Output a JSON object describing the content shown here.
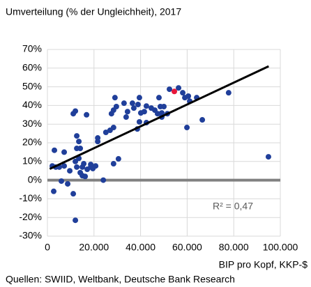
{
  "chart_data": {
    "type": "scatter",
    "title": "Umverteilung (% der Ungleichheit), 2017",
    "x_label": "BIP pro Kopf, KKP-$",
    "source": "Quellen: SWIID, Weltbank, Deutsche Bank Research",
    "annotation": "R² = 0,47",
    "xlim": [
      0,
      100000
    ],
    "xticks": [
      0,
      {
        "value": 20000,
        "label": "20.000"
      },
      {
        "value": 40000,
        "label": "40.000"
      },
      {
        "value": 60000,
        "label": "60.000"
      },
      {
        "value": 80000,
        "label": "80.000"
      },
      {
        "value": 100000,
        "label": "100.000"
      }
    ],
    "ylim": [
      -30,
      70
    ],
    "yticks": [
      {
        "value": -30,
        "label": "-30%"
      },
      {
        "value": -20,
        "label": "-20%"
      },
      {
        "value": -10,
        "label": "-10%"
      },
      {
        "value": 0,
        "label": "0%"
      },
      {
        "value": 10,
        "label": "10%"
      },
      {
        "value": 20,
        "label": "20%"
      },
      {
        "value": 30,
        "label": "30%"
      },
      {
        "value": 40,
        "label": "40%"
      },
      {
        "value": 50,
        "label": "50%"
      },
      {
        "value": 60,
        "label": "60%"
      },
      {
        "value": 70,
        "label": "70%"
      }
    ],
    "grid": true,
    "trendline": {
      "color": "#000000",
      "x": [
        1000,
        95000
      ],
      "y": [
        6,
        61
      ]
    },
    "series": [
      {
        "color": "#203f9a",
        "x": [
          2100,
          3000,
          2700,
          3600,
          5100,
          6000,
          7200,
          7200,
          8700,
          9600,
          11100,
          12000,
          11100,
          12600,
          13500,
          12600,
          14100,
          13500,
          12000,
          12600,
          15000,
          14100,
          15600,
          16800,
          17100,
          18600,
          18600,
          19500,
          20700,
          21600,
          21600,
          24000,
          12000,
          15000,
          16200,
          25100,
          26900,
          28400,
          29000,
          28400,
          29600,
          27500,
          30500,
          28400,
          32900,
          34400,
          33800,
          36500,
          37100,
          38900,
          39500,
          39500,
          38600,
          40100,
          41600,
          42500,
          42500,
          44600,
          46100,
          47300,
          48500,
          50000,
          49100,
          49100,
          47900,
          51500,
          52400,
          56300,
          58100,
          59000,
          60500,
          61100,
          59900,
          64100,
          66500,
          77800,
          94900
        ],
        "values": [
          7.6,
          16,
          -6,
          7,
          7,
          -0.5,
          15,
          7.6,
          -2,
          5,
          -7.3,
          37,
          35.6,
          23.7,
          20.7,
          17,
          17,
          11.7,
          10,
          7,
          7,
          4,
          8.8,
          35,
          5.8,
          7,
          8.4,
          6.2,
          7.6,
          20.7,
          22.6,
          0,
          -21.5,
          2.4,
          2,
          25.6,
          26.7,
          28.2,
          44.2,
          37.5,
          39.4,
          35.6,
          11.4,
          8.8,
          41.2,
          36.7,
          33.8,
          41.2,
          38.6,
          40.5,
          44.2,
          31.2,
          27.4,
          36,
          36.7,
          39.7,
          30.8,
          38.6,
          37.5,
          35.6,
          39.4,
          39.4,
          36,
          33.8,
          44.2,
          35.6,
          48.7,
          49.4,
          46.8,
          44.2,
          45,
          42.3,
          28.2,
          44.2,
          32.3,
          46.8,
          12.5
        ]
      },
      {
        "color": "#e8173a",
        "x": [
          54500
        ],
        "values": [
          47.5
        ]
      }
    ]
  }
}
